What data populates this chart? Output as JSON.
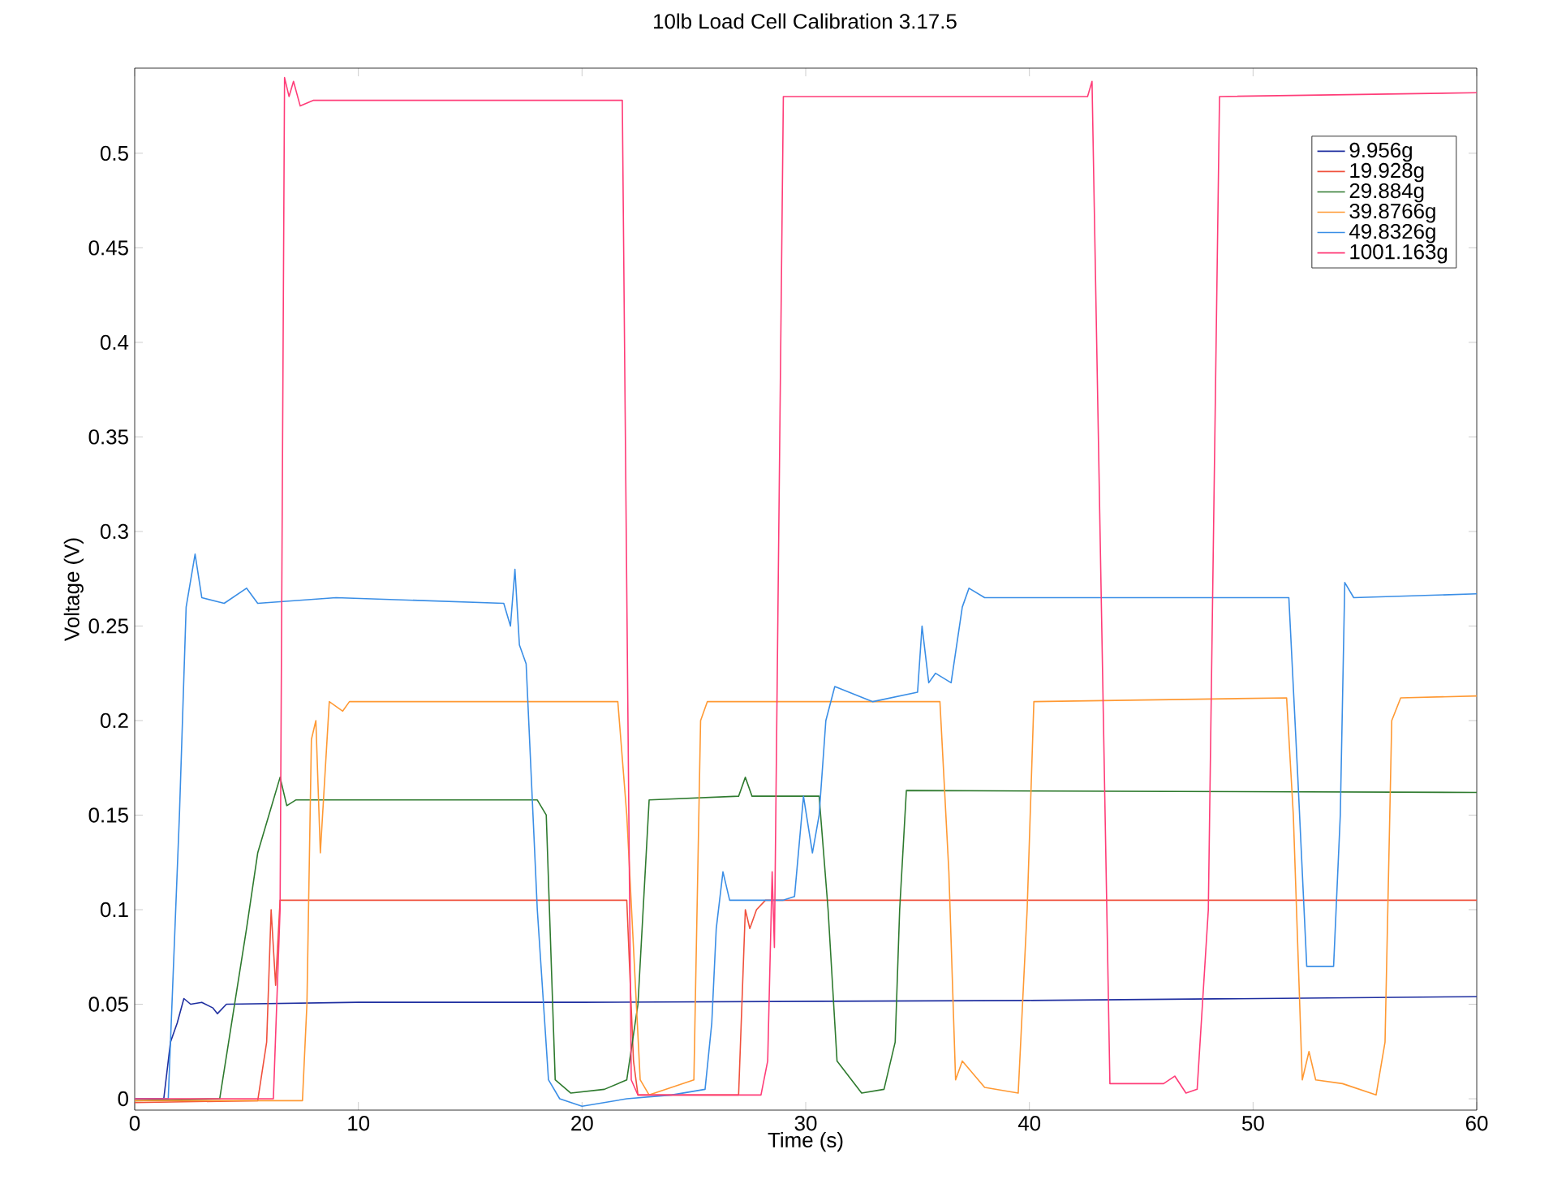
{
  "chart_data": {
    "type": "line",
    "title": "10lb Load Cell Calibration 3.17.5",
    "xlabel": "Time (s)",
    "ylabel": "Voltage (V)",
    "xlim": [
      0,
      60
    ],
    "ylim": [
      -0.006,
      0.545
    ],
    "xticks": [
      0,
      10,
      20,
      30,
      40,
      50,
      60
    ],
    "yticks": [
      0,
      0.05,
      0.1,
      0.15,
      0.2,
      0.25,
      0.3,
      0.35,
      0.4,
      0.45,
      0.5
    ],
    "grid": false,
    "legend": "top right",
    "marker": "none",
    "line_style": "solid",
    "series": [
      {
        "name": "9.956g",
        "color": "#1f2fa0",
        "x": [
          0,
          1.3,
          1.6,
          1.9,
          2.2,
          2.5,
          3,
          3.5,
          3.7,
          4.1,
          10,
          20,
          40,
          60
        ],
        "values": [
          0,
          0,
          0.03,
          0.04,
          0.053,
          0.05,
          0.051,
          0.048,
          0.045,
          0.05,
          0.051,
          0.051,
          0.052,
          0.054
        ]
      },
      {
        "name": "19.928g",
        "color": "#f0503c",
        "x": [
          0,
          5.5,
          5.9,
          6.1,
          6.3,
          6.5,
          7,
          22,
          22.3,
          22.5,
          27,
          27.3,
          27.5,
          27.8,
          28.2,
          60
        ],
        "values": [
          -0.002,
          -0.001,
          0.03,
          0.1,
          0.06,
          0.105,
          0.105,
          0.105,
          0.02,
          0.002,
          0.002,
          0.1,
          0.09,
          0.1,
          0.105,
          0.105
        ]
      },
      {
        "name": "29.884g",
        "color": "#2e7a2e",
        "x": [
          0,
          3.8,
          4.2,
          4.6,
          5,
          5.5,
          6,
          6.5,
          6.8,
          7.2,
          18,
          18.4,
          18.8,
          19.5,
          21,
          22,
          22.5,
          23,
          27,
          27.3,
          27.6,
          30.6,
          31,
          31.4,
          32.5,
          33.5,
          34,
          34.2,
          34.5,
          60
        ],
        "values": [
          -0.001,
          0,
          0.03,
          0.06,
          0.09,
          0.13,
          0.15,
          0.17,
          0.155,
          0.158,
          0.158,
          0.15,
          0.01,
          0.003,
          0.005,
          0.01,
          0.05,
          0.158,
          0.16,
          0.17,
          0.16,
          0.16,
          0.1,
          0.02,
          0.003,
          0.005,
          0.03,
          0.1,
          0.163,
          0.162
        ]
      },
      {
        "name": "39.8766g",
        "color": "#ff9933",
        "x": [
          0,
          7.5,
          7.7,
          7.9,
          8.1,
          8.3,
          8.5,
          8.7,
          9.3,
          9.6,
          10,
          21.6,
          22,
          22.6,
          23,
          25,
          25.3,
          25.6,
          36,
          36.4,
          36.7,
          37,
          38,
          39.5,
          39.9,
          40.2,
          51.5,
          51.8,
          52.2,
          52.5,
          52.8,
          54,
          55.5,
          55.9,
          56.2,
          56.6,
          60
        ],
        "values": [
          -0.001,
          -0.001,
          0.05,
          0.19,
          0.2,
          0.13,
          0.17,
          0.21,
          0.205,
          0.21,
          0.21,
          0.21,
          0.15,
          0.01,
          0.002,
          0.01,
          0.2,
          0.21,
          0.21,
          0.12,
          0.01,
          0.02,
          0.006,
          0.003,
          0.1,
          0.21,
          0.212,
          0.15,
          0.01,
          0.025,
          0.01,
          0.008,
          0.002,
          0.03,
          0.2,
          0.212,
          0.213
        ]
      },
      {
        "name": "49.8326g",
        "color": "#3a8ee6",
        "x": [
          0,
          1.5,
          2,
          2.3,
          2.7,
          3,
          4,
          5,
          5.5,
          9,
          16.5,
          16.8,
          17,
          17.2,
          17.5,
          18,
          18.5,
          19,
          20,
          22,
          24,
          25.5,
          25.8,
          26,
          26.3,
          26.6,
          29,
          29.5,
          29.9,
          30.3,
          30.6,
          30.9,
          31.3,
          33,
          35,
          35.2,
          35.5,
          35.8,
          36.5,
          37,
          37.3,
          38,
          51.6,
          52,
          52.4,
          53.6,
          53.9,
          54.1,
          54.5,
          60
        ],
        "values": [
          0,
          0,
          0.15,
          0.26,
          0.288,
          0.265,
          0.262,
          0.27,
          0.262,
          0.265,
          0.262,
          0.25,
          0.28,
          0.24,
          0.23,
          0.1,
          0.01,
          0,
          -0.004,
          0,
          0.002,
          0.005,
          0.04,
          0.09,
          0.12,
          0.105,
          0.105,
          0.107,
          0.16,
          0.13,
          0.15,
          0.2,
          0.218,
          0.21,
          0.215,
          0.25,
          0.22,
          0.225,
          0.22,
          0.26,
          0.27,
          0.265,
          0.265,
          0.17,
          0.07,
          0.07,
          0.15,
          0.273,
          0.265,
          0.267
        ]
      },
      {
        "name": "1001.163g",
        "color": "#ff3c78",
        "x": [
          0,
          6.2,
          6.5,
          6.7,
          6.9,
          7.1,
          7.4,
          8,
          21.8,
          22.2,
          22.5,
          28,
          28.3,
          28.5,
          28.6,
          29,
          42.6,
          42.8,
          43.6,
          46,
          46.5,
          47,
          47.5,
          48,
          48.5,
          60
        ],
        "values": [
          0,
          0,
          0.1,
          0.54,
          0.53,
          0.538,
          0.525,
          0.528,
          0.528,
          0.01,
          0.002,
          0.002,
          0.02,
          0.12,
          0.08,
          0.53,
          0.53,
          0.538,
          0.008,
          0.008,
          0.012,
          0.003,
          0.005,
          0.1,
          0.53,
          0.532
        ]
      }
    ]
  }
}
